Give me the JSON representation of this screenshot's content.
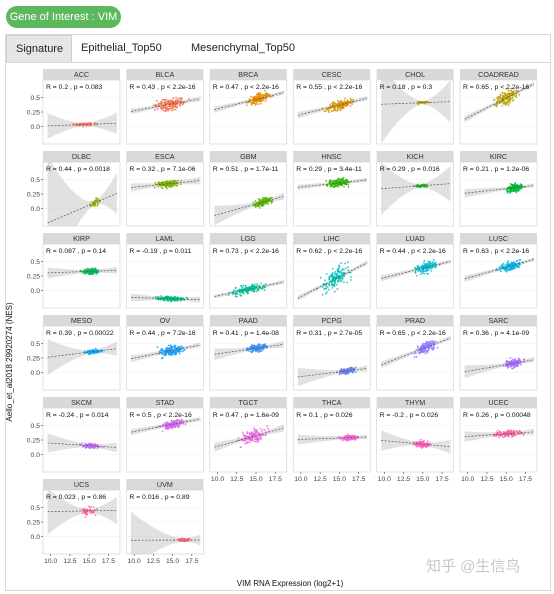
{
  "badge": {
    "label": "Gene of Interest : VIM"
  },
  "tabs": [
    {
      "label": "Signature",
      "active": true
    },
    {
      "label": "Epithelial_Top50",
      "active": false
    },
    {
      "label": "Mesenchymal_Top50",
      "active": false
    }
  ],
  "watermark": "知乎 @生信鸟",
  "colors": {
    "accent": "#5cb85c",
    "strip": "#d9d9d9",
    "ribbon": "#c9c9c9"
  },
  "chart_data": {
    "type": "scatter",
    "xlabel": "VIM RNA Expression (log2+1)",
    "ylabel": "Aello_et_al2018  29920274  (NES)",
    "xlim": [
      9,
      19
    ],
    "ylim": [
      -0.3,
      0.8
    ],
    "x_ticks": [
      10.0,
      12.5,
      15.0,
      17.5
    ],
    "x_tick_labels": [
      "10.0",
      "12.5",
      "15.0",
      "17.5"
    ],
    "y_ticks": [
      0.0,
      0.25,
      0.5
    ],
    "y_tick_labels": [
      "0.0",
      "0.25",
      "0.5"
    ],
    "fit": "linear regression with grey confidence band",
    "panels": [
      {
        "name": "ACC",
        "stat": "R = 0.2 , p = 0.083",
        "color": "#f8766d",
        "x": [
          12.2,
          16.6
        ],
        "y": [
          -0.02,
          0.09
        ],
        "n": 70
      },
      {
        "name": "BLCA",
        "stat": "R = 0.43 , p < 2.2e-16",
        "color": "#f06b45",
        "x": [
          11.0,
          18.2
        ],
        "y": [
          0.18,
          0.58
        ],
        "n": 300
      },
      {
        "name": "BRCA",
        "stat": "R = 0.47 , p < 2.2e-16",
        "color": "#e58a00",
        "x": [
          12.8,
          18.0
        ],
        "y": [
          0.3,
          0.66
        ],
        "n": 500
      },
      {
        "name": "CESC",
        "stat": "R = 0.55 , p < 2.2e-16",
        "color": "#d89000",
        "x": [
          11.8,
          18.2
        ],
        "y": [
          0.18,
          0.56
        ],
        "n": 280
      },
      {
        "name": "CHOL",
        "stat": "R = 0.18 , p = 0.3",
        "color": "#c49a00",
        "x": [
          13.2,
          16.8
        ],
        "y": [
          0.36,
          0.46
        ],
        "n": 35
      },
      {
        "name": "COADREAD",
        "stat": "R = 0.65 , p < 2.2e-16",
        "color": "#b5a000",
        "x": [
          12.4,
          17.6
        ],
        "y": [
          0.22,
          0.76
        ],
        "n": 400
      },
      {
        "name": "DLBC",
        "stat": "R = 0.44 , p = 0.0018",
        "color": "#9aa700",
        "x": [
          14.5,
          17.0
        ],
        "y": [
          -0.06,
          0.26
        ],
        "n": 45
      },
      {
        "name": "ESCA",
        "stat": "R = 0.32 , p = 7.1e-06",
        "color": "#7cae00",
        "x": [
          11.4,
          17.4
        ],
        "y": [
          0.3,
          0.55
        ],
        "n": 180
      },
      {
        "name": "GBM",
        "stat": "R = 0.51 , p = 1.7e-11",
        "color": "#5bb300",
        "x": [
          13.8,
          18.0
        ],
        "y": [
          -0.04,
          0.26
        ],
        "n": 160
      },
      {
        "name": "HNSC",
        "stat": "R = 0.29 , p = 3.4e-11",
        "color": "#2eb600",
        "x": [
          12.0,
          17.8
        ],
        "y": [
          0.3,
          0.58
        ],
        "n": 500
      },
      {
        "name": "KICH",
        "stat": "R = 0.29 , p = 0.016",
        "color": "#1cb725",
        "x": [
          13.2,
          16.2
        ],
        "y": [
          0.34,
          0.44
        ],
        "n": 65
      },
      {
        "name": "KIRC",
        "stat": "R = 0.21 , p = 1.2e-06",
        "color": "#00ba38",
        "x": [
          14.2,
          18.2
        ],
        "y": [
          0.22,
          0.5
        ],
        "n": 530
      },
      {
        "name": "KIRP",
        "stat": "R = 0.087 , p = 0.14",
        "color": "#00bc59",
        "x": [
          13.2,
          17.2
        ],
        "y": [
          0.22,
          0.44
        ],
        "n": 290
      },
      {
        "name": "LAML",
        "stat": "R = -0.19 , p = 0.011",
        "color": "#00bf7d",
        "x": [
          11.2,
          18.2
        ],
        "y": [
          -0.22,
          -0.06
        ],
        "n": 170
      },
      {
        "name": "LGG",
        "stat": "R = 0.73 , p < 2.2e-16",
        "color": "#00c19a",
        "x": [
          9.8,
          18.2
        ],
        "y": [
          -0.14,
          0.18
        ],
        "n": 520
      },
      {
        "name": "LIHC",
        "stat": "R = 0.62 , p < 2.2e-16",
        "color": "#00c0b8",
        "x": [
          11.2,
          17.8
        ],
        "y": [
          -0.16,
          0.56
        ],
        "n": 370
      },
      {
        "name": "LUAD",
        "stat": "R = 0.44 , p < 2.2e-16",
        "color": "#00bcd0",
        "x": [
          12.8,
          18.2
        ],
        "y": [
          0.2,
          0.6
        ],
        "n": 510
      },
      {
        "name": "LUSC",
        "stat": "R = 0.63 , p < 2.2e-16",
        "color": "#00b4e6",
        "x": [
          12.8,
          18.2
        ],
        "y": [
          0.26,
          0.58
        ],
        "n": 500
      },
      {
        "name": "MESO",
        "stat": "R = 0.39 , p = 0.00022",
        "color": "#00a9ff",
        "x": [
          13.6,
          17.4
        ],
        "y": [
          0.28,
          0.44
        ],
        "n": 85
      },
      {
        "name": "OV",
        "stat": "R = 0.44 , p = 7.2e-16",
        "color": "#199cf7",
        "x": [
          12.0,
          18.0
        ],
        "y": [
          0.2,
          0.56
        ],
        "n": 300
      },
      {
        "name": "PAAD",
        "stat": "R = 0.41 , p = 1.4e-08",
        "color": "#3a8ff0",
        "x": [
          12.6,
          17.8
        ],
        "y": [
          0.3,
          0.54
        ],
        "n": 180
      },
      {
        "name": "PCPG",
        "stat": "R = 0.31 , p = 2.7e-05",
        "color": "#6a84e8",
        "x": [
          14.0,
          18.2
        ],
        "y": [
          -0.08,
          0.14
        ],
        "n": 180
      },
      {
        "name": "PRAD",
        "stat": "R = 0.65 , p < 2.2e-16",
        "color": "#8f7aff",
        "x": [
          13.0,
          17.8
        ],
        "y": [
          0.24,
          0.62
        ],
        "n": 490
      },
      {
        "name": "SARC",
        "stat": "R = 0.36 , p = 4.1e-09",
        "color": "#a970ff",
        "x": [
          13.8,
          18.2
        ],
        "y": [
          0.02,
          0.3
        ],
        "n": 260
      },
      {
        "name": "SKCM",
        "stat": "R = -0.24 , p = 0.014",
        "color": "#bf6cf2",
        "x": [
          12.8,
          17.8
        ],
        "y": [
          0.06,
          0.24
        ],
        "n": 105
      },
      {
        "name": "STAD",
        "stat": "R = 0.5 , p < 2.2e-16",
        "color": "#d267ea",
        "x": [
          12.2,
          17.8
        ],
        "y": [
          0.38,
          0.66
        ],
        "n": 400
      },
      {
        "name": "TGCT",
        "stat": "R = 0.47 , p = 1.6e-09",
        "color": "#e46bde",
        "x": [
          11.4,
          17.8
        ],
        "y": [
          0.06,
          0.56
        ],
        "n": 150
      },
      {
        "name": "THCA",
        "stat": "R = 0.1 , p = 0.026",
        "color": "#f464d2",
        "x": [
          14.4,
          18.2
        ],
        "y": [
          0.2,
          0.38
        ],
        "n": 500
      },
      {
        "name": "THYM",
        "stat": "R = -0.2 , p = 0.026",
        "color": "#fa62bf",
        "x": [
          12.8,
          16.8
        ],
        "y": [
          0.06,
          0.3
        ],
        "n": 120
      },
      {
        "name": "UCEC",
        "stat": "R = 0.26 , p = 0.00048",
        "color": "#fd61a8",
        "x": [
          12.4,
          18.2
        ],
        "y": [
          0.26,
          0.46
        ],
        "n": 180
      },
      {
        "name": "UCS",
        "stat": "R = 0.023 , p = 0.86",
        "color": "#fe6591",
        "x": [
          13.0,
          16.8
        ],
        "y": [
          0.28,
          0.6
        ],
        "n": 55
      },
      {
        "name": "UVM",
        "stat": "R = 0.016 , p = 0.89",
        "color": "#fb6a7c",
        "x": [
          14.8,
          18.2
        ],
        "y": [
          -0.12,
          0.0
        ],
        "n": 80
      }
    ]
  }
}
